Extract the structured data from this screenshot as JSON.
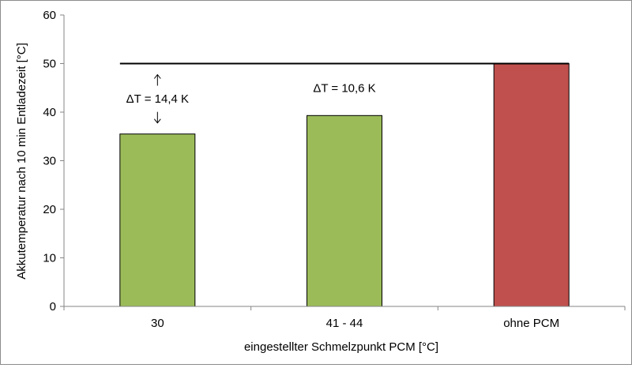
{
  "chart_data": {
    "type": "bar",
    "categories": [
      "30",
      "41 - 44",
      "ohne PCM"
    ],
    "values": [
      35.5,
      39.3,
      50
    ],
    "bar_colors": [
      "#9bbb59",
      "#9bbb59",
      "#c0504d"
    ],
    "reference_line": {
      "value": 50
    },
    "ylabel": "Akkutemperatur nach 10 min Entladezeit [°C]",
    "xlabel": "eingestellter Schmelzpunkt PCM [°C]",
    "ylim": [
      0,
      60
    ],
    "yticks": [
      0,
      10,
      20,
      30,
      40,
      50,
      60
    ],
    "grid": false,
    "annotations": [
      {
        "category_index": 0,
        "text": "ΔT = 14,4 K",
        "arrows": true
      },
      {
        "category_index": 1,
        "text": "ΔT = 10,6 K",
        "arrows": false
      }
    ]
  }
}
